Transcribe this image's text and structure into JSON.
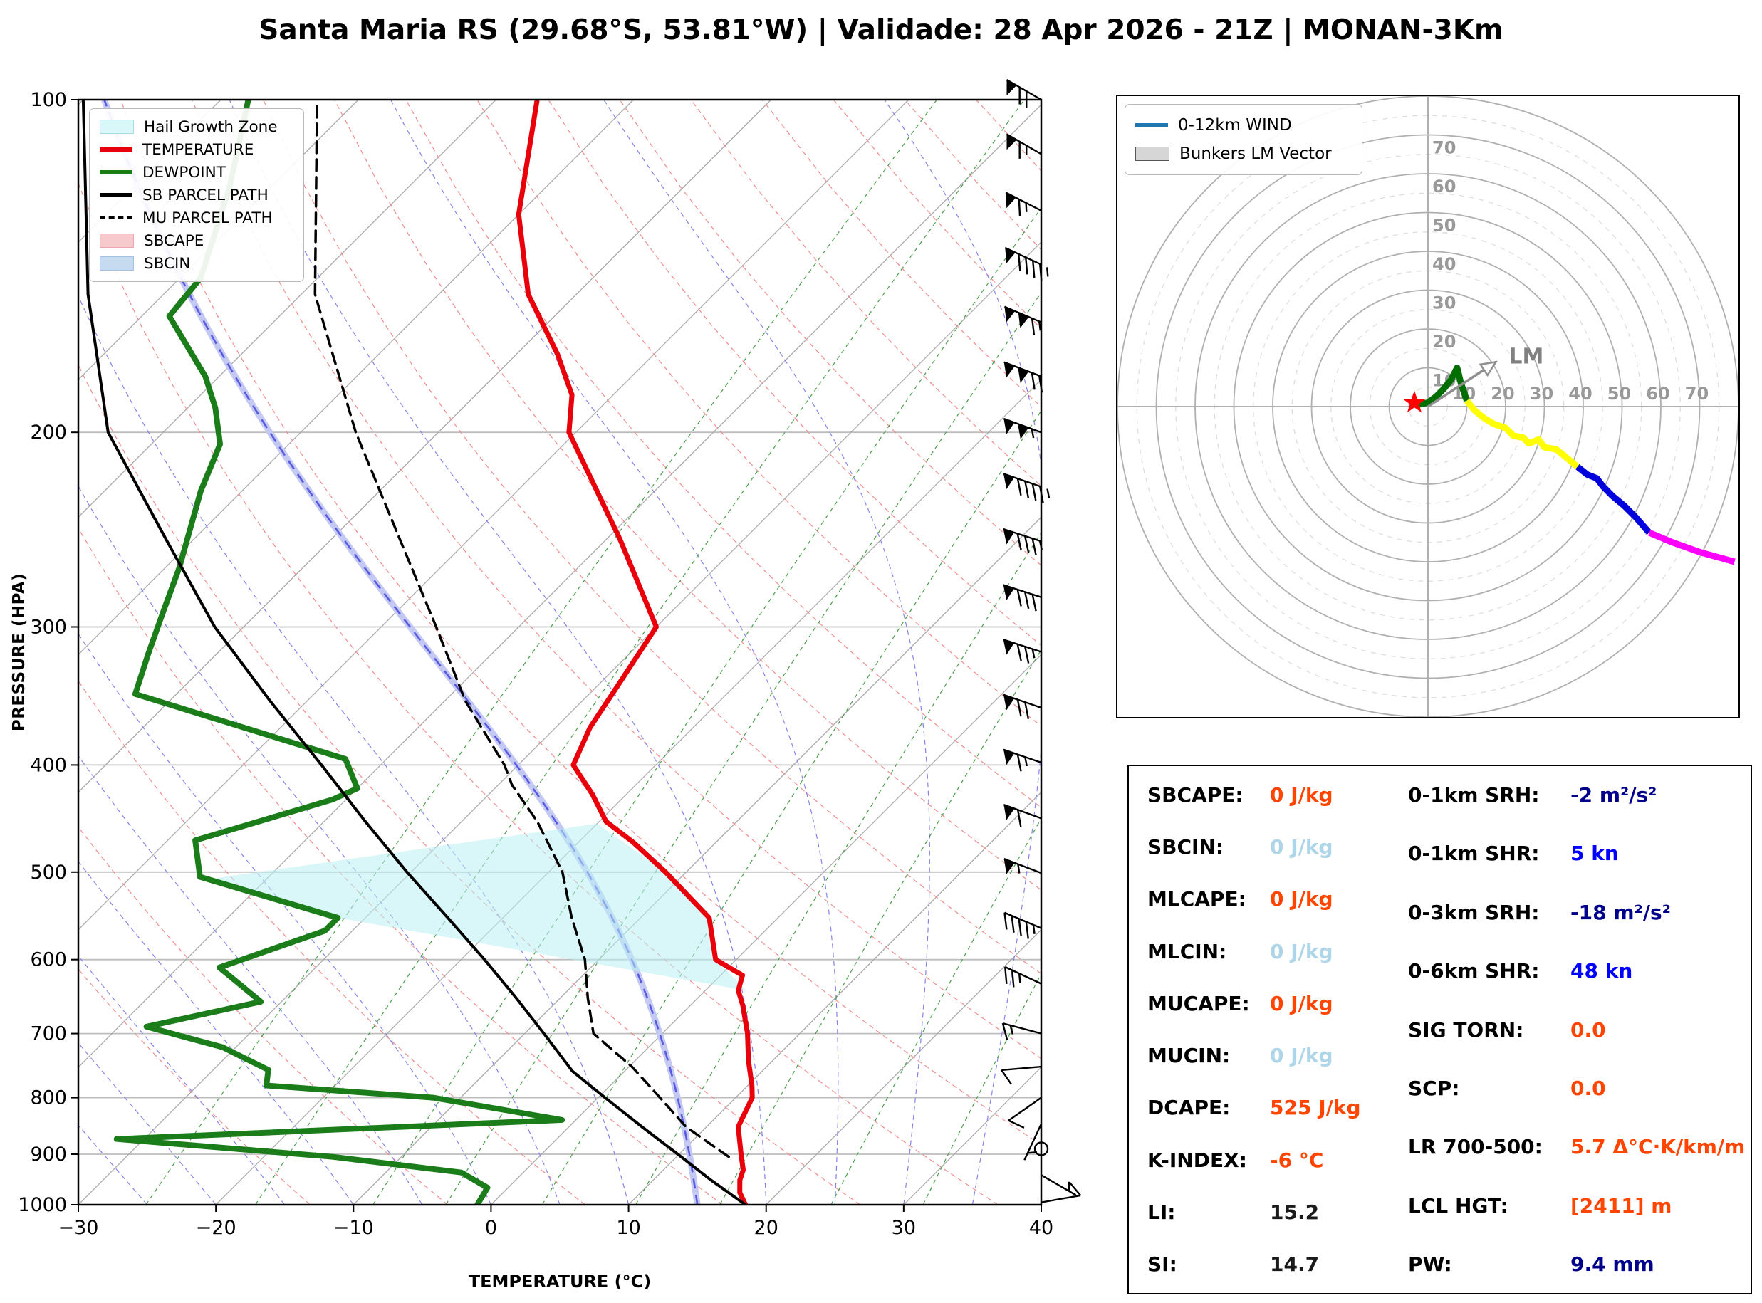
{
  "title": "Santa Maria RS (29.68°S, 53.81°W) | Validade: 28 Apr 2026 - 21Z | MONAN-3Km",
  "skewt": {
    "ylabel": "PRESSURE (HPA)",
    "xlabel": "TEMPERATURE (°C)",
    "x_ticks": [
      -30,
      -20,
      -10,
      0,
      10,
      20,
      30,
      40
    ],
    "y_ticks": [
      100,
      200,
      300,
      400,
      500,
      600,
      700,
      800,
      900,
      1000
    ],
    "legend": [
      {
        "label": "Hail Growth Zone",
        "swatch": "patch",
        "color": "#d9f6f8",
        "border": "#a8dde0"
      },
      {
        "label": "TEMPERATURE",
        "swatch": "line",
        "color": "#e8000b"
      },
      {
        "label": "DEWPOINT",
        "swatch": "line",
        "color": "#1a7d1a"
      },
      {
        "label": "SB PARCEL PATH",
        "swatch": "line",
        "color": "#000000"
      },
      {
        "label": "MU PARCEL PATH",
        "swatch": "dash",
        "color": "#000000"
      },
      {
        "label": "SBCAPE",
        "swatch": "patch",
        "color": "#f6c9cd",
        "border": "#eaa7ae"
      },
      {
        "label": "SBCIN",
        "swatch": "patch",
        "color": "#c6daf0",
        "border": "#a3c1e2"
      }
    ]
  },
  "hodograph": {
    "legend": [
      {
        "label": "0-12km WIND",
        "swatch": "line",
        "color": "#1f77b4"
      },
      {
        "label": "Bunkers LM Vector",
        "swatch": "patch-hatch",
        "color": "#d6d6d6",
        "border": "#555555"
      }
    ],
    "ring_labels": [
      10,
      20,
      30,
      40,
      50,
      60,
      70
    ],
    "lm_label": "LM"
  },
  "stats": {
    "left": [
      {
        "label": "SBCAPE:",
        "value": "0 J/kg",
        "color": "orange"
      },
      {
        "label": "SBCIN:",
        "value": "0 J/kg",
        "color": "lightblue"
      },
      {
        "label": "MLCAPE:",
        "value": "0 J/kg",
        "color": "orange"
      },
      {
        "label": "MLCIN:",
        "value": "0 J/kg",
        "color": "lightblue"
      },
      {
        "label": "MUCAPE:",
        "value": "0 J/kg",
        "color": "orange"
      },
      {
        "label": "MUCIN:",
        "value": "0 J/kg",
        "color": "lightblue"
      },
      {
        "label": "DCAPE:",
        "value": "525 J/kg",
        "color": "orange"
      },
      {
        "label": "K-INDEX:",
        "value": "-6 °C",
        "color": "orange"
      },
      {
        "label": "LI:",
        "value": "15.2",
        "color": "black"
      },
      {
        "label": "SI:",
        "value": "14.7",
        "color": "black"
      }
    ],
    "right": [
      {
        "label": "0-1km SRH:",
        "value": "-2 m²/s²",
        "color": "navy"
      },
      {
        "label": "0-1km SHR:",
        "value": "5 kn",
        "color": "blue"
      },
      {
        "label": "0-3km SRH:",
        "value": "-18 m²/s²",
        "color": "navy"
      },
      {
        "label": "0-6km SHR:",
        "value": "48 kn",
        "color": "blue"
      },
      {
        "label": "SIG TORN:",
        "value": "0.0",
        "color": "orange"
      },
      {
        "label": "SCP:",
        "value": "0.0",
        "color": "orange"
      },
      {
        "label": "LR 700-500:",
        "value": "5.7 Δ°C·K/km/m",
        "color": "orange"
      },
      {
        "label": "LCL HGT:",
        "value": "[2411] m",
        "color": "orange"
      },
      {
        "label": "PW:",
        "value": "9.4 mm",
        "color": "navy"
      }
    ]
  },
  "chart_data": [
    {
      "type": "line",
      "name": "skew-t-log-p",
      "title": "Santa Maria RS (29.68°S, 53.81°W) | Validade: 28 Apr 2026 - 21Z | MONAN-3Km",
      "xlabel": "TEMPERATURE (°C)",
      "ylabel": "PRESSURE (HPA)",
      "xlim": [
        -30,
        40
      ],
      "pressure_lim": [
        100,
        1000
      ],
      "skew_deg": 45,
      "grid": true,
      "series": [
        {
          "name": "TEMPERATURE",
          "color": "#e8000b",
          "width": 7,
          "points": [
            [
              1000,
              18.5
            ],
            [
              975,
              17.2
            ],
            [
              950,
              16.3
            ],
            [
              930,
              15.8
            ],
            [
              900,
              14.5
            ],
            [
              850,
              12.3
            ],
            [
              800,
              11.2
            ],
            [
              780,
              10.3
            ],
            [
              740,
              8.2
            ],
            [
              700,
              6.2
            ],
            [
              660,
              3.8
            ],
            [
              640,
              2.4
            ],
            [
              620,
              1.6
            ],
            [
              600,
              -1.5
            ],
            [
              550,
              -5
            ],
            [
              500,
              -11.5
            ],
            [
              470,
              -16
            ],
            [
              450,
              -19.5
            ],
            [
              425,
              -22.5
            ],
            [
              400,
              -26
            ],
            [
              370,
              -27.5
            ],
            [
              340,
              -28.5
            ],
            [
              300,
              -30
            ],
            [
              250,
              -39
            ],
            [
              200,
              -50.5
            ],
            [
              185,
              -53
            ],
            [
              170,
              -57
            ],
            [
              150,
              -63.5
            ],
            [
              127,
              -70
            ],
            [
              100,
              -77
            ]
          ]
        },
        {
          "name": "DEWPOINT",
          "color": "#1a7d1a",
          "width": 8,
          "points": [
            [
              1000,
              -1
            ],
            [
              965,
              -1.5
            ],
            [
              935,
              -4.5
            ],
            [
              905,
              -15
            ],
            [
              872,
              -32
            ],
            [
              838,
              -1
            ],
            [
              800,
              -12
            ],
            [
              780,
              -25
            ],
            [
              755,
              -26
            ],
            [
              720,
              -31
            ],
            [
              690,
              -38
            ],
            [
              655,
              -31.5
            ],
            [
              610,
              -37
            ],
            [
              565,
              -32
            ],
            [
              550,
              -32
            ],
            [
              505,
              -45
            ],
            [
              468,
              -48
            ],
            [
              430,
              -41
            ],
            [
              420,
              -40
            ],
            [
              395,
              -43
            ],
            [
              345,
              -63
            ],
            [
              317,
              -65
            ],
            [
              290,
              -67
            ],
            [
              265,
              -69
            ],
            [
              226,
              -73
            ],
            [
              205,
              -75
            ],
            [
              190,
              -78
            ],
            [
              178,
              -81
            ],
            [
              157,
              -88
            ],
            [
              145,
              -88.5
            ],
            [
              120,
              -93
            ],
            [
              100,
              -98
            ]
          ]
        },
        {
          "name": "SB PARCEL PATH",
          "color": "#000000",
          "width": 4,
          "points": [
            [
              1000,
              18.5
            ],
            [
              950,
              14.2
            ],
            [
              900,
              9.9
            ],
            [
              850,
              5.3
            ],
            [
              800,
              0.5
            ],
            [
              757,
              -3.8
            ],
            [
              700,
              -8.6
            ],
            [
              650,
              -13.2
            ],
            [
              600,
              -18.3
            ],
            [
              550,
              -24
            ],
            [
              500,
              -30.3
            ],
            [
              450,
              -37
            ],
            [
              400,
              -44.3
            ],
            [
              350,
              -52.7
            ],
            [
              300,
              -62.1
            ],
            [
              250,
              -72
            ],
            [
              200,
              -84
            ],
            [
              150,
              -95.5
            ],
            [
              100,
              -110
            ]
          ]
        },
        {
          "name": "MU PARCEL PATH",
          "color": "#000000",
          "width": 3.5,
          "dashed": true,
          "points": [
            [
              905,
              13.8
            ],
            [
              850,
              8.5
            ],
            [
              800,
              4.5
            ],
            [
              750,
              0.2
            ],
            [
              700,
              -5
            ],
            [
              650,
              -8
            ],
            [
              600,
              -11
            ],
            [
              550,
              -15
            ],
            [
              500,
              -19
            ],
            [
              450,
              -24.5
            ],
            [
              417,
              -29
            ],
            [
              400,
              -31
            ],
            [
              350,
              -38.5
            ],
            [
              300,
              -46
            ],
            [
              250,
              -55
            ],
            [
              200,
              -66
            ],
            [
              150,
              -79
            ],
            [
              100,
              -93
            ]
          ]
        }
      ],
      "hail_growth_zone_polygon_pT": [
        [
          507,
          -44
        ],
        [
          452,
          -20
        ],
        [
          500,
          -11.5
        ],
        [
          550,
          -5
        ],
        [
          600,
          -1.5
        ],
        [
          640,
          3
        ],
        [
          550,
          -32
        ]
      ],
      "highlighted_moist_adiabat_surface_T": 15,
      "wind_barbs": [
        {
          "p": 100,
          "kt": 70,
          "dir": 300
        },
        {
          "p": 112,
          "kt": 65,
          "dir": 300
        },
        {
          "p": 126,
          "kt": 65,
          "dir": 297
        },
        {
          "p": 141,
          "kt": 95,
          "dir": 295
        },
        {
          "p": 159,
          "kt": 115,
          "dir": 293
        },
        {
          "p": 178,
          "kt": 120,
          "dir": 291
        },
        {
          "p": 200,
          "kt": 105,
          "dir": 290
        },
        {
          "p": 224,
          "kt": 95,
          "dir": 289
        },
        {
          "p": 251,
          "kt": 85,
          "dir": 288
        },
        {
          "p": 282,
          "kt": 80,
          "dir": 288
        },
        {
          "p": 316,
          "kt": 75,
          "dir": 288
        },
        {
          "p": 355,
          "kt": 70,
          "dir": 289
        },
        {
          "p": 398,
          "kt": 65,
          "dir": 289
        },
        {
          "p": 447,
          "kt": 60,
          "dir": 290
        },
        {
          "p": 501,
          "kt": 55,
          "dir": 291
        },
        {
          "p": 562,
          "kt": 45,
          "dir": 293
        },
        {
          "p": 631,
          "kt": 25,
          "dir": 295
        },
        {
          "p": 700,
          "kt": 15,
          "dir": 285
        },
        {
          "p": 750,
          "kt": 10,
          "dir": 265
        },
        {
          "p": 800,
          "kt": 8,
          "dir": 235
        },
        {
          "p": 845,
          "kt": 5,
          "dir": 205
        },
        {
          "p": 890,
          "kt": 0,
          "dir": 0
        },
        {
          "p": 940,
          "kt": 5,
          "dir": 120
        },
        {
          "p": 995,
          "kt": 8,
          "dir": 80
        }
      ],
      "isolines": {
        "isotherm_step_c": 10,
        "dry_adiabat_theta_k": [
          260,
          270,
          280,
          290,
          300,
          310,
          320,
          330,
          340,
          350,
          360,
          370,
          380,
          390,
          400,
          410,
          420,
          430,
          440,
          450,
          460
        ],
        "moist_adiabat_surface_t_c": [
          -35,
          -30,
          -25,
          -20,
          -15,
          -10,
          -5,
          0,
          5,
          10,
          15,
          20,
          25,
          30,
          35,
          40
        ],
        "mixing_ratio_g_kg": [
          0.5,
          1,
          2,
          3,
          5,
          8,
          12,
          20,
          30
        ]
      }
    },
    {
      "type": "line",
      "name": "hodograph",
      "units": "kn",
      "ring_interval": 10,
      "max_ring": 70,
      "segments": [
        {
          "name": "0-3km",
          "color": "#006e00",
          "points": [
            [
              -2.5,
              0.5
            ],
            [
              0,
              1
            ],
            [
              2,
              2.5
            ],
            [
              4,
              4.5
            ],
            [
              6,
              7
            ],
            [
              7.5,
              10
            ],
            [
              8.5,
              6
            ],
            [
              9.5,
              3
            ],
            [
              10,
              1.5
            ]
          ]
        },
        {
          "name": "3-6km",
          "color": "#ffff00",
          "points": [
            [
              10,
              1.5
            ],
            [
              12,
              -1
            ],
            [
              14.5,
              -3
            ],
            [
              17,
              -4.5
            ],
            [
              20,
              -5.5
            ],
            [
              22,
              -7.5
            ],
            [
              24.5,
              -8
            ],
            [
              26,
              -9.5
            ],
            [
              28.5,
              -8.5
            ],
            [
              30,
              -10.5
            ],
            [
              33,
              -11
            ],
            [
              35.5,
              -13
            ],
            [
              38.5,
              -15.5
            ]
          ]
        },
        {
          "name": "6-9km",
          "color": "#0000dd",
          "points": [
            [
              38.5,
              -15.5
            ],
            [
              41,
              -17.5
            ],
            [
              43.5,
              -18.5
            ],
            [
              45,
              -20.5
            ],
            [
              47.5,
              -23
            ],
            [
              50.5,
              -25.5
            ],
            [
              53.5,
              -28.5
            ],
            [
              57,
              -32.5
            ]
          ]
        },
        {
          "name": "9-12km",
          "color": "#ff00ff",
          "points": [
            [
              57,
              -32.5
            ],
            [
              63,
              -35
            ],
            [
              70,
              -37.5
            ],
            [
              79,
              -40
            ]
          ]
        }
      ],
      "surface_marker_uv": [
        -3.5,
        1
      ],
      "bunkers_lm_vector_uv": [
        17.5,
        11.5
      ],
      "lm_label": "LM"
    }
  ]
}
